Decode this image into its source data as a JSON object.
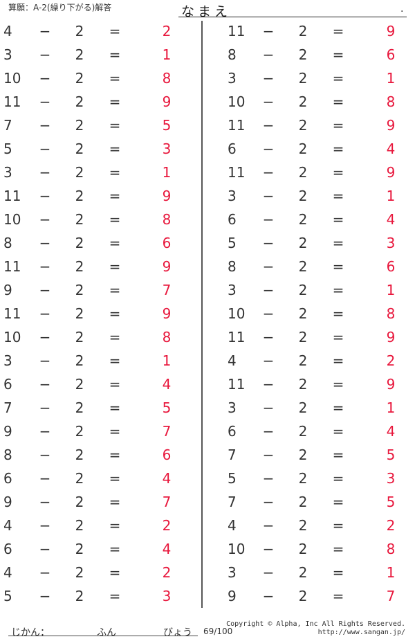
{
  "header": {
    "title": "算願：A-2(繰り下がる)解答",
    "name_label": "なまえ",
    "name_dot": "."
  },
  "colors": {
    "answer": "#e8173c",
    "text": "#333333"
  },
  "operator": "−",
  "equals": "=",
  "left": [
    {
      "a": "4",
      "b": "2",
      "ans": "2"
    },
    {
      "a": "3",
      "b": "2",
      "ans": "1"
    },
    {
      "a": "10",
      "b": "2",
      "ans": "8"
    },
    {
      "a": "11",
      "b": "2",
      "ans": "9"
    },
    {
      "a": "7",
      "b": "2",
      "ans": "5"
    },
    {
      "a": "5",
      "b": "2",
      "ans": "3"
    },
    {
      "a": "3",
      "b": "2",
      "ans": "1"
    },
    {
      "a": "11",
      "b": "2",
      "ans": "9"
    },
    {
      "a": "10",
      "b": "2",
      "ans": "8"
    },
    {
      "a": "8",
      "b": "2",
      "ans": "6"
    },
    {
      "a": "11",
      "b": "2",
      "ans": "9"
    },
    {
      "a": "9",
      "b": "2",
      "ans": "7"
    },
    {
      "a": "11",
      "b": "2",
      "ans": "9"
    },
    {
      "a": "10",
      "b": "2",
      "ans": "8"
    },
    {
      "a": "3",
      "b": "2",
      "ans": "1"
    },
    {
      "a": "6",
      "b": "2",
      "ans": "4"
    },
    {
      "a": "7",
      "b": "2",
      "ans": "5"
    },
    {
      "a": "9",
      "b": "2",
      "ans": "7"
    },
    {
      "a": "8",
      "b": "2",
      "ans": "6"
    },
    {
      "a": "6",
      "b": "2",
      "ans": "4"
    },
    {
      "a": "9",
      "b": "2",
      "ans": "7"
    },
    {
      "a": "4",
      "b": "2",
      "ans": "2"
    },
    {
      "a": "6",
      "b": "2",
      "ans": "4"
    },
    {
      "a": "4",
      "b": "2",
      "ans": "2"
    },
    {
      "a": "5",
      "b": "2",
      "ans": "3"
    }
  ],
  "right": [
    {
      "a": "11",
      "b": "2",
      "ans": "9"
    },
    {
      "a": "8",
      "b": "2",
      "ans": "6"
    },
    {
      "a": "3",
      "b": "2",
      "ans": "1"
    },
    {
      "a": "10",
      "b": "2",
      "ans": "8"
    },
    {
      "a": "11",
      "b": "2",
      "ans": "9"
    },
    {
      "a": "6",
      "b": "2",
      "ans": "4"
    },
    {
      "a": "11",
      "b": "2",
      "ans": "9"
    },
    {
      "a": "3",
      "b": "2",
      "ans": "1"
    },
    {
      "a": "6",
      "b": "2",
      "ans": "4"
    },
    {
      "a": "5",
      "b": "2",
      "ans": "3"
    },
    {
      "a": "8",
      "b": "2",
      "ans": "6"
    },
    {
      "a": "3",
      "b": "2",
      "ans": "1"
    },
    {
      "a": "10",
      "b": "2",
      "ans": "8"
    },
    {
      "a": "11",
      "b": "2",
      "ans": "9"
    },
    {
      "a": "4",
      "b": "2",
      "ans": "2"
    },
    {
      "a": "11",
      "b": "2",
      "ans": "9"
    },
    {
      "a": "3",
      "b": "2",
      "ans": "1"
    },
    {
      "a": "6",
      "b": "2",
      "ans": "4"
    },
    {
      "a": "7",
      "b": "2",
      "ans": "5"
    },
    {
      "a": "5",
      "b": "2",
      "ans": "3"
    },
    {
      "a": "7",
      "b": "2",
      "ans": "5"
    },
    {
      "a": "4",
      "b": "2",
      "ans": "2"
    },
    {
      "a": "10",
      "b": "2",
      "ans": "8"
    },
    {
      "a": "3",
      "b": "2",
      "ans": "1"
    },
    {
      "a": "9",
      "b": "2",
      "ans": "7"
    }
  ],
  "footer": {
    "time_label": "じかん：",
    "minutes_label": "ふん",
    "seconds_label": "びょう",
    "page": "69/100",
    "copyright": "Copyright © Alpha, Inc All Rights Reserved.",
    "url": "http://www.sangan.jp/"
  }
}
